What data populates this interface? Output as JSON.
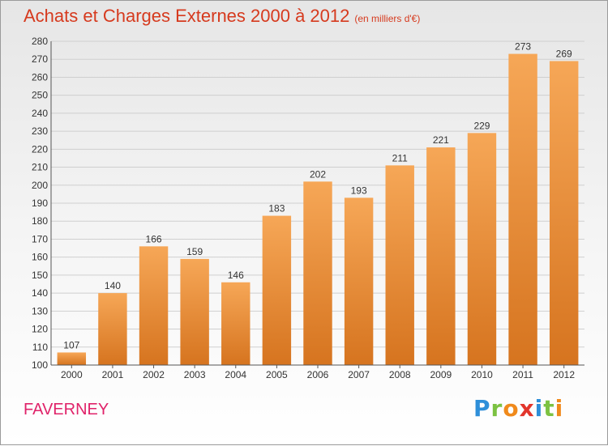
{
  "header": {
    "title": "Achats et Charges Externes 2000 à 2012",
    "subtitle": "(en milliers d'€)"
  },
  "footer": {
    "commune": "FAVERNEY",
    "logo_letters": [
      "P",
      "r",
      "o",
      "x",
      "i",
      "t",
      "i"
    ],
    "logo_colors": [
      "#2e8fd9",
      "#7cc242",
      "#f08a1c",
      "#e2352c",
      "#2e8fd9",
      "#7cc242",
      "#f08a1c"
    ]
  },
  "chart_data": {
    "type": "bar",
    "categories": [
      "2000",
      "2001",
      "2002",
      "2003",
      "2004",
      "2005",
      "2006",
      "2007",
      "2008",
      "2009",
      "2010",
      "2011",
      "2012"
    ],
    "values": [
      107,
      140,
      166,
      159,
      146,
      183,
      202,
      193,
      211,
      221,
      229,
      273,
      269
    ],
    "ylim": [
      100,
      280
    ],
    "yticks": [
      100,
      110,
      120,
      130,
      140,
      150,
      160,
      170,
      180,
      190,
      200,
      210,
      220,
      230,
      240,
      250,
      260,
      270,
      280
    ],
    "grid": true,
    "bar_color_top": "#f6a757",
    "bar_color_bottom": "#d6741f"
  }
}
